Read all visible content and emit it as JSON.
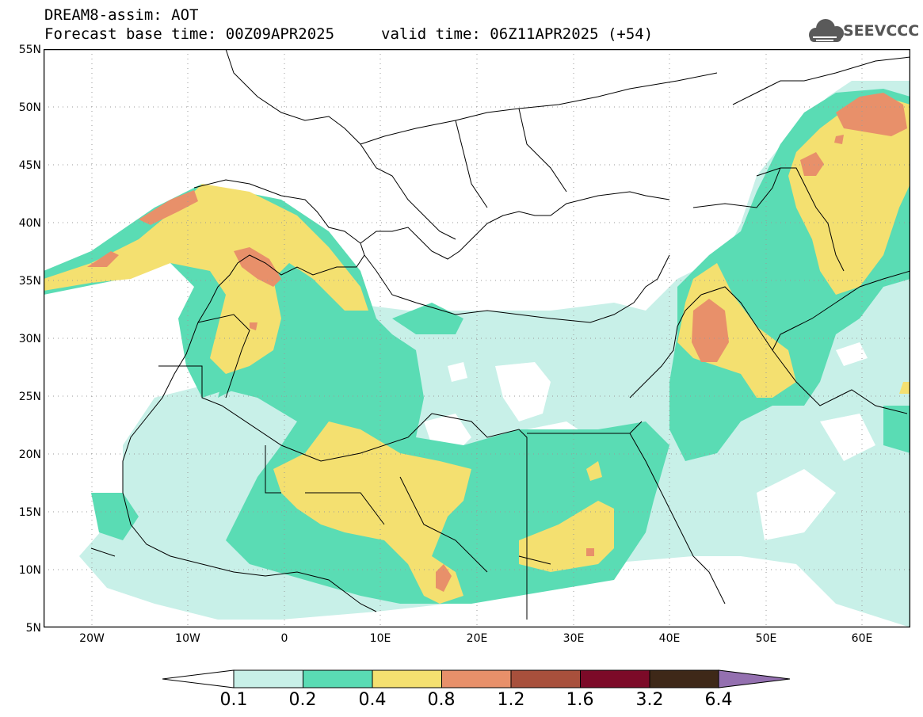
{
  "header": {
    "title": "DREAM8-assim: AOT",
    "base_time": "Forecast base time: 00Z09APR2025",
    "valid_time": "valid time: 06Z11APR2025 (+54)"
  },
  "logo": {
    "text": "SEEVCCC",
    "icon": "cloud-icon",
    "color": "#555555"
  },
  "map": {
    "projection": "lat-lon",
    "lon_range": [
      -25,
      65
    ],
    "lat_range": [
      5,
      55
    ],
    "gridlines": "dotted",
    "lat_labels": [
      "55N",
      "50N",
      "45N",
      "40N",
      "35N",
      "30N",
      "25N",
      "20N",
      "15N",
      "10N",
      "5N"
    ],
    "lon_labels": [
      "20W",
      "10W",
      "0",
      "10E",
      "20E",
      "30E",
      "40E",
      "50E",
      "60E"
    ]
  },
  "colorbar": {
    "levels": [
      "0.1",
      "0.2",
      "0.4",
      "0.8",
      "1.2",
      "1.6",
      "3.2",
      "6.4"
    ],
    "colors": [
      "#c8f0e8",
      "#5adcb4",
      "#f4e070",
      "#e8906a",
      "#a8503c",
      "#7c0a28",
      "#3e2818",
      "#9470b0"
    ],
    "extend": "both"
  }
}
